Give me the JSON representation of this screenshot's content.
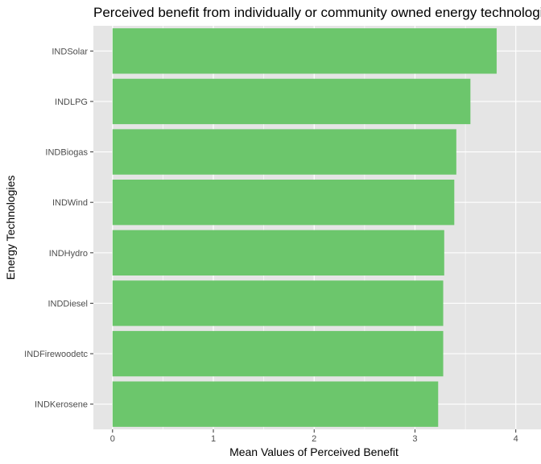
{
  "chart_data": {
    "type": "bar",
    "orientation": "horizontal",
    "title": "Perceived benefit from individually or community owned energy technologies",
    "xlabel": "Mean Values of Perceived Benefit",
    "ylabel": "Energy Technologies",
    "categories": [
      "INDSolar",
      "INDLPG",
      "INDBiogas",
      "INDWind",
      "INDHydro",
      "INDDiesel",
      "INDFirewoodetc",
      "INDKerosene"
    ],
    "values": [
      3.81,
      3.55,
      3.41,
      3.39,
      3.29,
      3.28,
      3.28,
      3.23
    ],
    "xlim": [
      -0.19,
      4.25
    ],
    "xticks": [
      0,
      1,
      2,
      3,
      4
    ],
    "grid": true,
    "bar_color": "#6CC66C",
    "panel_background": "#E5E5E5",
    "grid_color": "#FFFFFF"
  }
}
